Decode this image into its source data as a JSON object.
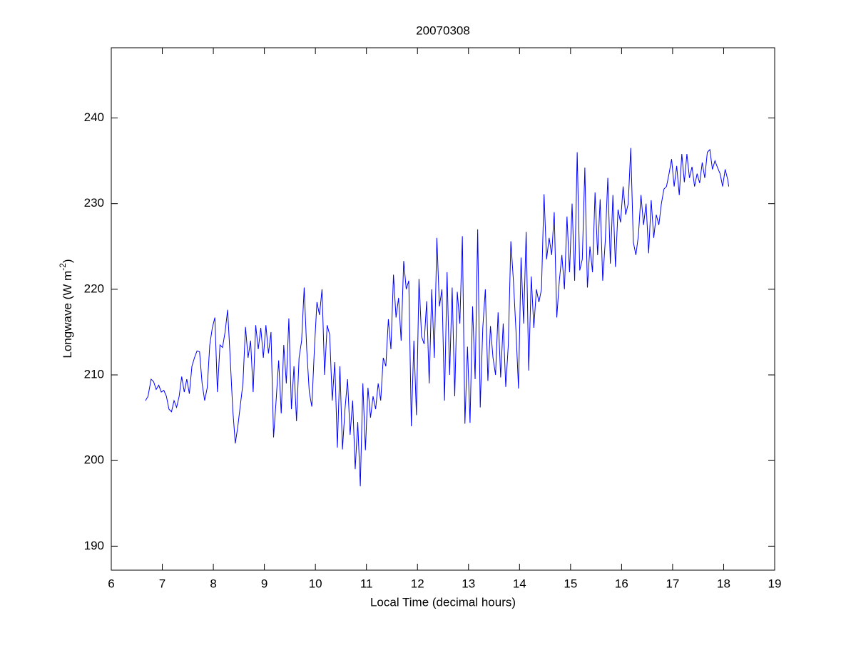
{
  "chart_data": {
    "type": "line",
    "title": "20070308",
    "xlabel": "Local Time (decimal hours)",
    "ylabel": {
      "text": "Longwave (W m",
      "superscript": "-2",
      "suffix": ")"
    },
    "xlim": [
      6,
      19
    ],
    "xticks": [
      6,
      7,
      8,
      9,
      10,
      11,
      12,
      13,
      14,
      15,
      16,
      17,
      18,
      19
    ],
    "ylim": [
      187.2,
      248.2
    ],
    "yticks": [
      190,
      200,
      210,
      220,
      230,
      240
    ],
    "grid": false,
    "x": [
      6.67,
      6.72,
      6.78,
      6.83,
      6.88,
      6.93,
      6.98,
      7.03,
      7.08,
      7.13,
      7.18,
      7.23,
      7.28,
      7.33,
      7.38,
      7.43,
      7.48,
      7.53,
      7.58,
      7.63,
      7.68,
      7.73,
      7.78,
      7.83,
      7.88,
      7.93,
      7.98,
      8.03,
      8.08,
      8.13,
      8.18,
      8.23,
      8.28,
      8.33,
      8.38,
      8.43,
      8.48,
      8.53,
      8.58,
      8.63,
      8.68,
      8.73,
      8.78,
      8.83,
      8.88,
      8.93,
      8.98,
      9.03,
      9.08,
      9.13,
      9.18,
      9.23,
      9.28,
      9.33,
      9.38,
      9.43,
      9.48,
      9.53,
      9.58,
      9.63,
      9.68,
      9.73,
      9.78,
      9.83,
      9.88,
      9.93,
      9.98,
      10.03,
      10.08,
      10.13,
      10.18,
      10.23,
      10.28,
      10.33,
      10.38,
      10.43,
      10.48,
      10.53,
      10.58,
      10.63,
      10.68,
      10.73,
      10.78,
      10.83,
      10.88,
      10.93,
      10.98,
      11.03,
      11.08,
      11.13,
      11.18,
      11.23,
      11.28,
      11.33,
      11.38,
      11.43,
      11.48,
      11.53,
      11.58,
      11.63,
      11.68,
      11.73,
      11.78,
      11.83,
      11.88,
      11.93,
      11.98,
      12.03,
      12.08,
      12.13,
      12.18,
      12.23,
      12.28,
      12.33,
      12.38,
      12.43,
      12.48,
      12.53,
      12.58,
      12.63,
      12.68,
      12.73,
      12.78,
      12.83,
      12.88,
      12.93,
      12.98,
      13.03,
      13.08,
      13.13,
      13.18,
      13.23,
      13.28,
      13.33,
      13.38,
      13.43,
      13.48,
      13.53,
      13.58,
      13.63,
      13.68,
      13.73,
      13.78,
      13.83,
      13.88,
      13.93,
      13.98,
      14.03,
      14.08,
      14.13,
      14.18,
      14.23,
      14.28,
      14.33,
      14.38,
      14.43,
      14.48,
      14.53,
      14.58,
      14.63,
      14.68,
      14.73,
      14.78,
      14.83,
      14.88,
      14.93,
      14.98,
      15.03,
      15.08,
      15.13,
      15.18,
      15.23,
      15.28,
      15.33,
      15.38,
      15.43,
      15.48,
      15.53,
      15.58,
      15.63,
      15.68,
      15.73,
      15.78,
      15.83,
      15.88,
      15.93,
      15.98,
      16.03,
      16.08,
      16.13,
      16.18,
      16.23,
      16.28,
      16.33,
      16.38,
      16.43,
      16.48,
      16.53,
      16.58,
      16.63,
      16.68,
      16.73,
      16.78,
      16.83,
      16.88,
      16.93,
      16.98,
      17.03,
      17.08,
      17.13,
      17.18,
      17.23,
      17.28,
      17.33,
      17.38,
      17.43,
      17.48,
      17.53,
      17.58,
      17.63,
      17.68,
      17.73,
      17.78,
      17.83,
      17.88,
      17.93,
      17.98,
      18.03,
      18.08,
      18.1
    ],
    "series": [
      {
        "color": "#0000ff",
        "values": [
          207,
          207.5,
          209.5,
          209.2,
          208.3,
          208.8,
          208,
          208.2,
          207.5,
          206,
          205.7,
          207,
          206.2,
          207.5,
          209.8,
          208,
          209.5,
          207.8,
          211,
          212,
          212.8,
          212.7,
          209,
          207,
          208.5,
          213.5,
          215.5,
          216.7,
          208,
          213.5,
          213.2,
          215,
          217.6,
          212,
          206,
          202,
          204,
          206.5,
          209,
          215.6,
          212,
          214,
          208,
          215.8,
          213,
          215.5,
          212,
          215.8,
          212.5,
          215,
          202.7,
          207,
          211.7,
          205.5,
          213.5,
          209,
          216.6,
          206,
          211,
          204.6,
          212,
          214,
          220.2,
          213,
          208,
          206.3,
          213,
          218.5,
          217,
          220,
          210,
          215.8,
          214.7,
          207,
          211.5,
          201.5,
          211,
          201.3,
          206,
          209.5,
          203,
          207,
          199,
          204.5,
          197,
          209,
          201.2,
          208.5,
          205,
          207.5,
          206,
          209,
          207,
          212,
          211,
          216.5,
          213,
          221.7,
          216.7,
          219,
          214,
          223.3,
          220,
          221,
          204,
          214,
          205.3,
          221.2,
          214.5,
          213.6,
          218.6,
          209,
          220,
          212,
          226,
          218,
          220,
          207,
          222,
          210,
          220.2,
          207.5,
          219.7,
          216,
          226.2,
          204.3,
          213.3,
          204.4,
          218,
          209.5,
          227,
          206.2,
          215.5,
          220,
          209.3,
          215.7,
          212,
          210,
          217.3,
          209.7,
          216,
          208.6,
          213.5,
          225.6,
          221,
          215.2,
          208.4,
          223.7,
          216,
          226.7,
          210.5,
          221.5,
          215.5,
          220,
          218.5,
          220,
          231.1,
          223.5,
          226,
          224,
          229,
          216.7,
          221,
          224,
          220,
          228.5,
          222,
          230,
          221,
          236,
          222.2,
          223.5,
          234.2,
          220.2,
          225,
          222,
          231.3,
          224,
          230.5,
          221,
          225.6,
          233,
          223,
          231,
          222.6,
          229.3,
          227.8,
          232,
          228.7,
          230,
          236.5,
          225.5,
          224,
          226.3,
          231,
          227.5,
          230,
          224.2,
          230.4,
          226,
          228.7,
          227.5,
          230,
          231.7,
          232,
          233.5,
          235.2,
          232,
          234.4,
          231,
          235.8,
          232.5,
          235.8,
          233,
          234.3,
          232,
          233.5,
          232.4,
          234.8,
          233,
          236,
          236.3,
          234,
          235,
          234.2,
          233.5,
          232,
          234,
          232.8,
          232
        ]
      }
    ]
  }
}
